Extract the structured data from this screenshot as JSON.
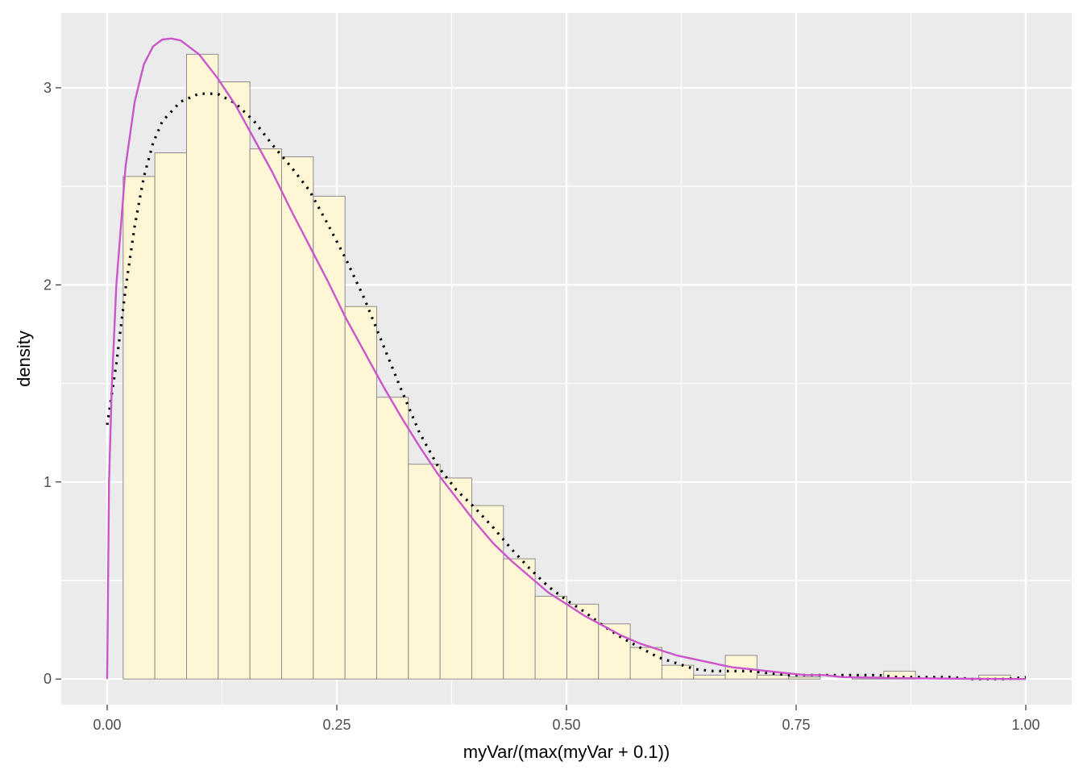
{
  "chart_data": {
    "type": "bar",
    "xlabel": "myVar/(max(myVar + 0.1))",
    "ylabel": "density",
    "xlim": [
      -0.05,
      1.05
    ],
    "ylim": [
      -0.13,
      3.38
    ],
    "x_ticks": [
      0,
      0.25,
      0.5,
      0.75,
      1.0
    ],
    "x_tick_labels": [
      "0.00",
      "0.25",
      "0.50",
      "0.75",
      "1.00"
    ],
    "y_ticks": [
      0,
      1,
      2,
      3
    ],
    "y_tick_labels": [
      "0",
      "1",
      "2",
      "3"
    ],
    "grid": true,
    "histogram": {
      "bin_edges": [
        0.0174,
        0.0519,
        0.0864,
        0.1209,
        0.1554,
        0.1899,
        0.2244,
        0.2589,
        0.2934,
        0.3279,
        0.3624,
        0.3969,
        0.4314,
        0.4659,
        0.5004,
        0.5349,
        0.5694,
        0.6039,
        0.6384,
        0.6729,
        0.7074,
        0.7419,
        0.7764,
        0.8109,
        0.8454,
        0.8799,
        0.9144,
        0.9489,
        0.9834
      ],
      "densities": [
        2.55,
        2.67,
        3.17,
        3.03,
        2.69,
        2.65,
        2.45,
        1.89,
        1.43,
        1.09,
        1.02,
        0.88,
        0.61,
        0.42,
        0.38,
        0.28,
        0.16,
        0.07,
        0.02,
        0.12,
        0.02,
        0.01,
        0.0,
        0.01,
        0.04,
        0.0,
        0.0,
        0.02
      ]
    },
    "series": [
      {
        "style": "dotted",
        "x": [
          0.0,
          0.01,
          0.02,
          0.03,
          0.04,
          0.05,
          0.06,
          0.07,
          0.08,
          0.1,
          0.12,
          0.14,
          0.16,
          0.18,
          0.2,
          0.22,
          0.24,
          0.26,
          0.28,
          0.3,
          0.32,
          0.34,
          0.36,
          0.38,
          0.4,
          0.42,
          0.44,
          0.46,
          0.48,
          0.5,
          0.52,
          0.54,
          0.56,
          0.58,
          0.6,
          0.62,
          0.64,
          0.66,
          0.68,
          0.7,
          0.72,
          0.74,
          0.76,
          0.78,
          0.8,
          0.82,
          0.84,
          0.86,
          0.88,
          0.9,
          0.92,
          0.94,
          0.96,
          0.98,
          1.0
        ],
        "y": [
          1.29,
          1.6,
          1.98,
          2.3,
          2.55,
          2.72,
          2.83,
          2.88,
          2.93,
          2.97,
          2.97,
          2.92,
          2.83,
          2.71,
          2.6,
          2.48,
          2.31,
          2.13,
          1.93,
          1.7,
          1.47,
          1.25,
          1.08,
          0.96,
          0.87,
          0.77,
          0.66,
          0.56,
          0.47,
          0.4,
          0.34,
          0.27,
          0.21,
          0.16,
          0.11,
          0.08,
          0.05,
          0.04,
          0.04,
          0.04,
          0.03,
          0.02,
          0.02,
          0.02,
          0.02,
          0.02,
          0.02,
          0.01,
          0.01,
          0.01,
          0.01,
          0.0,
          0.0,
          0.0,
          0.01
        ]
      },
      {
        "style": "solid",
        "color": "#cc55cc",
        "x": [
          0.0,
          0.002,
          0.005,
          0.01,
          0.02,
          0.03,
          0.04,
          0.05,
          0.06,
          0.07,
          0.08,
          0.1,
          0.12,
          0.14,
          0.16,
          0.18,
          0.2,
          0.22,
          0.24,
          0.26,
          0.28,
          0.3,
          0.32,
          0.34,
          0.36,
          0.38,
          0.4,
          0.42,
          0.44,
          0.46,
          0.48,
          0.5,
          0.52,
          0.54,
          0.56,
          0.58,
          0.6,
          0.62,
          0.64,
          0.66,
          0.68,
          0.7,
          0.72,
          0.74,
          0.76,
          0.78,
          0.8,
          0.85,
          0.9,
          0.95,
          1.0
        ],
        "y": [
          0.0,
          1.0,
          1.48,
          2.0,
          2.6,
          2.93,
          3.12,
          3.21,
          3.245,
          3.25,
          3.24,
          3.17,
          3.05,
          2.91,
          2.74,
          2.57,
          2.38,
          2.2,
          2.02,
          1.83,
          1.66,
          1.49,
          1.33,
          1.18,
          1.04,
          0.92,
          0.8,
          0.69,
          0.6,
          0.52,
          0.44,
          0.38,
          0.32,
          0.27,
          0.22,
          0.18,
          0.15,
          0.12,
          0.1,
          0.08,
          0.06,
          0.05,
          0.04,
          0.03,
          0.02,
          0.02,
          0.01,
          0.005,
          0.003,
          0.001,
          0.0
        ]
      }
    ]
  }
}
